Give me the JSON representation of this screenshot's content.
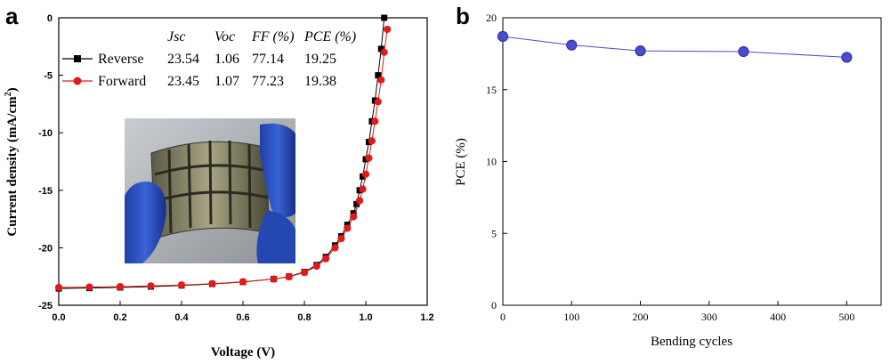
{
  "chart_data": [
    {
      "panel": "a",
      "type": "line",
      "xlabel": "Voltage (V)",
      "ylabel": "Current density (mA/cm",
      "ylabel_sup": "2",
      "ylabel_end": ")",
      "xlim": [
        0.0,
        1.2
      ],
      "ylim": [
        -25,
        0
      ],
      "x_ticks": [
        "0.0",
        "0.2",
        "0.4",
        "0.6",
        "0.8",
        "1.0",
        "1.2"
      ],
      "y_ticks": [
        "0",
        "-5",
        "-10",
        "-15",
        "-20",
        "-25"
      ],
      "series": [
        {
          "name": "Reverse",
          "color": "#000000",
          "marker": "square",
          "x": [
            0.0,
            0.1,
            0.2,
            0.3,
            0.4,
            0.5,
            0.6,
            0.7,
            0.75,
            0.8,
            0.84,
            0.87,
            0.9,
            0.92,
            0.94,
            0.96,
            0.97,
            0.98,
            0.99,
            1.0,
            1.01,
            1.02,
            1.03,
            1.04,
            1.05,
            1.06
          ],
          "y": [
            -23.54,
            -23.5,
            -23.45,
            -23.38,
            -23.28,
            -23.15,
            -22.98,
            -22.72,
            -22.5,
            -22.1,
            -21.5,
            -20.8,
            -19.8,
            -19.0,
            -18.0,
            -17.0,
            -16.2,
            -15.0,
            -13.8,
            -12.3,
            -10.8,
            -9.0,
            -7.2,
            -5.0,
            -2.7,
            0.0
          ]
        },
        {
          "name": "Forward",
          "color": "#e11b1b",
          "marker": "circle",
          "x": [
            0.0,
            0.1,
            0.2,
            0.3,
            0.4,
            0.5,
            0.6,
            0.7,
            0.75,
            0.8,
            0.84,
            0.87,
            0.9,
            0.92,
            0.94,
            0.96,
            0.98,
            0.99,
            1.0,
            1.01,
            1.02,
            1.03,
            1.04,
            1.05,
            1.06,
            1.07
          ],
          "y": [
            -23.45,
            -23.42,
            -23.38,
            -23.32,
            -23.24,
            -23.12,
            -22.96,
            -22.72,
            -22.52,
            -22.15,
            -21.6,
            -20.95,
            -20.0,
            -19.2,
            -18.3,
            -17.3,
            -15.9,
            -14.9,
            -13.6,
            -12.2,
            -10.7,
            -9.0,
            -7.3,
            -5.4,
            -3.0,
            -1.0
          ]
        }
      ],
      "table": {
        "headers": [
          "Jsc",
          "Voc",
          "FF (%)",
          "PCE (%)"
        ],
        "rows": [
          {
            "label": "Reverse",
            "values": [
              "23.54",
              "1.06",
              "77.14",
              "19.25"
            ]
          },
          {
            "label": "Forward",
            "values": [
              "23.45",
              "1.07",
              "77.23",
              "19.38"
            ]
          }
        ]
      },
      "inset": "photo-flexible-solar-cell"
    },
    {
      "panel": "b",
      "type": "line",
      "xlabel": "Bending cycles",
      "ylabel": "PCE (%)",
      "xlim": [
        0,
        550
      ],
      "ylim": [
        0,
        20
      ],
      "x_ticks": [
        "0",
        "100",
        "200",
        "300",
        "400",
        "500"
      ],
      "y_ticks": [
        "0",
        "5",
        "10",
        "15",
        "20"
      ],
      "series": [
        {
          "name": "",
          "color": "#4b4bd0",
          "marker": "circle",
          "x": [
            0,
            100,
            200,
            350,
            500
          ],
          "y": [
            18.7,
            18.1,
            17.7,
            17.65,
            17.25
          ]
        }
      ]
    }
  ]
}
